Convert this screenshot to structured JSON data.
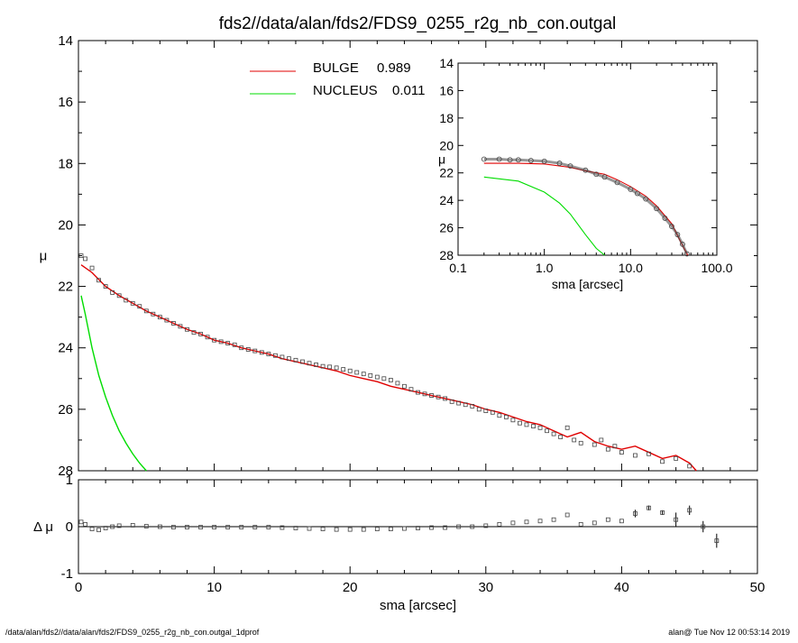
{
  "title": "fds2//data/alan/fds2/FDS9_0255_r2g_nb_con.outgal",
  "footer_left": "/data/alan/fds2//data/alan/fds2/FDS9_0255_r2g_nb_con.outgal_1dprof",
  "footer_right": "alan@  Tue Nov 12 00:53:14 2019",
  "colors": {
    "bulge": "#e00000",
    "nucleus": "#00dd00",
    "data": "#444444"
  },
  "chart_data": [
    {
      "type": "line",
      "panel": "main",
      "xlabel": "sma [arcsec]",
      "ylabel": "μ",
      "xlim": [
        0,
        50
      ],
      "ylim": [
        28,
        14
      ],
      "x_ticks": [
        0,
        10,
        20,
        30,
        40,
        50
      ],
      "y_ticks": [
        14,
        16,
        18,
        20,
        22,
        24,
        26,
        28
      ],
      "legend": [
        {
          "label": "BULGE",
          "value": "0.989",
          "color": "#e00000"
        },
        {
          "label": "NUCLEUS",
          "value": "0.011",
          "color": "#00dd00"
        }
      ],
      "series": [
        {
          "name": "BULGE",
          "style": "line",
          "x": [
            0.2,
            1,
            2,
            3,
            4,
            5,
            6,
            7,
            8,
            9,
            10,
            11,
            12,
            13,
            14,
            15,
            16,
            17,
            18,
            19,
            20,
            21,
            22,
            23,
            24,
            25,
            26,
            27,
            28,
            29,
            30,
            31,
            32,
            33,
            34,
            35,
            36,
            37,
            38,
            39,
            40,
            41,
            42,
            43,
            44,
            45,
            45.5
          ],
          "y": [
            21.3,
            21.55,
            22.0,
            22.3,
            22.55,
            22.8,
            23.0,
            23.2,
            23.4,
            23.55,
            23.75,
            23.85,
            24.0,
            24.1,
            24.2,
            24.35,
            24.45,
            24.55,
            24.65,
            24.75,
            24.9,
            25.0,
            25.1,
            25.25,
            25.35,
            25.45,
            25.55,
            25.65,
            25.75,
            25.85,
            26.0,
            26.1,
            26.25,
            26.4,
            26.5,
            26.7,
            26.9,
            26.75,
            27.05,
            27.2,
            27.3,
            27.2,
            27.4,
            27.6,
            27.5,
            27.75,
            28.0
          ]
        },
        {
          "name": "NUCLEUS",
          "style": "line",
          "x": [
            0.2,
            0.5,
            1,
            1.5,
            2,
            2.5,
            3,
            3.5,
            4,
            4.5,
            5
          ],
          "y": [
            22.3,
            22.9,
            24.0,
            24.9,
            25.6,
            26.2,
            26.7,
            27.1,
            27.45,
            27.75,
            28.0
          ]
        },
        {
          "name": "data",
          "style": "markers",
          "x": [
            0.2,
            0.5,
            1,
            1.5,
            2,
            2.5,
            3,
            3.5,
            4,
            4.5,
            5,
            5.5,
            6,
            6.5,
            7,
            7.5,
            8,
            8.5,
            9,
            9.5,
            10,
            10.5,
            11,
            11.5,
            12,
            12.5,
            13,
            13.5,
            14,
            14.5,
            15,
            15.5,
            16,
            16.5,
            17,
            17.5,
            18,
            18.5,
            19,
            19.5,
            20,
            20.5,
            21,
            21.5,
            22,
            22.5,
            23,
            23.5,
            24,
            24.5,
            25,
            25.5,
            26,
            26.5,
            27,
            27.5,
            28,
            28.5,
            29,
            29.5,
            30,
            30.5,
            31,
            31.5,
            32,
            32.5,
            33,
            33.5,
            34,
            34.5,
            35,
            35.5,
            36,
            36.5,
            37,
            38,
            38.5,
            39,
            39.5,
            40,
            41,
            42,
            43,
            44,
            45
          ],
          "y": [
            21.0,
            21.1,
            21.4,
            21.8,
            22.0,
            22.2,
            22.3,
            22.45,
            22.55,
            22.65,
            22.8,
            22.9,
            23.0,
            23.1,
            23.2,
            23.3,
            23.4,
            23.5,
            23.55,
            23.65,
            23.75,
            23.8,
            23.85,
            23.9,
            24.0,
            24.05,
            24.1,
            24.15,
            24.2,
            24.25,
            24.3,
            24.35,
            24.4,
            24.45,
            24.5,
            24.55,
            24.6,
            24.62,
            24.65,
            24.7,
            24.75,
            24.8,
            24.85,
            24.9,
            24.95,
            25.0,
            25.05,
            25.15,
            25.25,
            25.35,
            25.45,
            25.5,
            25.55,
            25.6,
            25.65,
            25.75,
            25.8,
            25.85,
            25.9,
            26.0,
            26.05,
            26.1,
            26.2,
            26.25,
            26.35,
            26.45,
            26.5,
            26.55,
            26.6,
            26.7,
            26.8,
            26.9,
            26.6,
            27.0,
            27.1,
            27.15,
            27.0,
            27.3,
            27.2,
            27.4,
            27.5,
            27.45,
            27.7,
            27.6,
            27.85
          ]
        }
      ]
    },
    {
      "type": "scatter",
      "panel": "residual",
      "xlabel": "sma [arcsec]",
      "ylabel": "Δ μ",
      "xlim": [
        0,
        50
      ],
      "ylim": [
        -1,
        1
      ],
      "x_ticks": [
        0,
        10,
        20,
        30,
        40,
        50
      ],
      "y_ticks": [
        -1,
        0,
        1
      ],
      "series": [
        {
          "name": "residual",
          "x": [
            0.2,
            0.5,
            1,
            1.5,
            2,
            2.5,
            3,
            4,
            5,
            6,
            7,
            8,
            9,
            10,
            11,
            12,
            13,
            14,
            15,
            16,
            17,
            18,
            19,
            20,
            21,
            22,
            23,
            24,
            25,
            26,
            27,
            28,
            29,
            30,
            31,
            32,
            33,
            34,
            35,
            36,
            37,
            38,
            39,
            40,
            41,
            42,
            43,
            44,
            45,
            46,
            47
          ],
          "y": [
            0.1,
            0.05,
            -0.05,
            -0.07,
            -0.03,
            0.0,
            0.02,
            0.03,
            0.01,
            0.0,
            -0.01,
            -0.01,
            -0.01,
            -0.01,
            -0.01,
            -0.01,
            -0.01,
            -0.01,
            -0.02,
            -0.03,
            -0.04,
            -0.05,
            -0.06,
            -0.06,
            -0.06,
            -0.05,
            -0.05,
            -0.04,
            -0.03,
            -0.02,
            -0.02,
            0.0,
            0.0,
            0.02,
            0.05,
            0.08,
            0.1,
            0.12,
            0.15,
            0.25,
            0.05,
            0.08,
            0.15,
            0.12,
            0.28,
            0.4,
            0.3,
            0.15,
            0.35,
            0.0,
            -0.3
          ],
          "err": [
            0,
            0,
            0,
            0,
            0,
            0,
            0,
            0,
            0,
            0,
            0,
            0,
            0,
            0,
            0,
            0,
            0,
            0,
            0,
            0,
            0,
            0,
            0,
            0,
            0,
            0,
            0,
            0,
            0,
            0,
            0,
            0,
            0,
            0,
            0,
            0,
            0,
            0,
            0,
            0,
            0,
            0,
            0,
            0,
            0.08,
            0.05,
            0.05,
            0.15,
            0.1,
            0.12,
            0.15
          ]
        }
      ]
    },
    {
      "type": "line",
      "panel": "inset",
      "xlabel": "sma [arcsec]",
      "ylabel": "μ",
      "x_scale": "log",
      "xlim": [
        0.1,
        100
      ],
      "ylim": [
        28,
        14
      ],
      "x_ticks": [
        "0.1",
        "1.0",
        "10.0",
        "100.0"
      ],
      "y_ticks": [
        14,
        16,
        18,
        20,
        22,
        24,
        26,
        28
      ],
      "series": [
        {
          "name": "BULGE",
          "x": [
            0.2,
            0.5,
            1,
            2,
            3,
            5,
            7,
            10,
            15,
            20,
            30,
            40,
            46
          ],
          "y": [
            21.3,
            21.3,
            21.35,
            21.6,
            21.85,
            22.1,
            22.5,
            23.0,
            23.7,
            24.4,
            25.7,
            27.3,
            28.0
          ]
        },
        {
          "name": "NUCLEUS",
          "x": [
            0.2,
            0.5,
            1,
            1.5,
            2,
            3,
            4,
            5
          ],
          "y": [
            22.3,
            22.6,
            23.4,
            24.2,
            25.0,
            26.5,
            27.5,
            28.0
          ]
        },
        {
          "name": "data",
          "x": [
            0.2,
            0.3,
            0.4,
            0.5,
            0.7,
            1.0,
            1.5,
            2,
            3,
            4,
            5,
            7,
            10,
            12,
            15,
            20,
            25,
            30,
            35,
            40,
            45
          ],
          "y": [
            21.0,
            21.0,
            21.05,
            21.05,
            21.1,
            21.15,
            21.3,
            21.5,
            21.8,
            22.1,
            22.3,
            22.7,
            23.2,
            23.5,
            23.9,
            24.6,
            25.3,
            25.9,
            26.5,
            27.2,
            27.9
          ]
        }
      ]
    }
  ]
}
